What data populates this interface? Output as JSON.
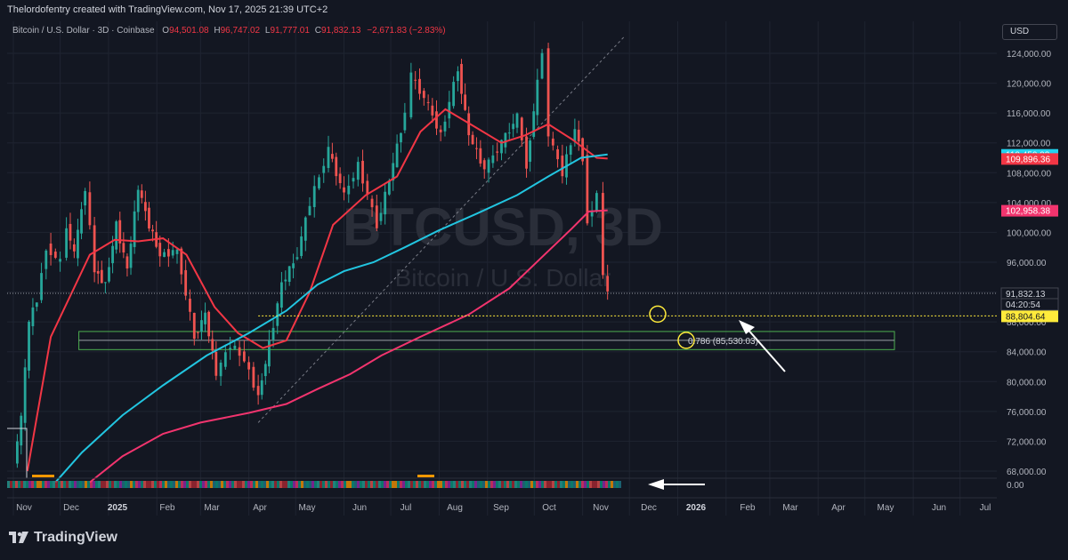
{
  "header": {
    "creator": "Thelordofentry created with TradingView.com, Nov 17, 2025 21:39 UTC+2"
  },
  "legend": {
    "symbol": "Bitcoin / U.S. Dollar · 3D · Coinbase",
    "open_label": "O",
    "open": "94,501.08",
    "high_label": "H",
    "high": "96,747.02",
    "low_label": "L",
    "low": "91,777.01",
    "close_label": "C",
    "close": "91,832.13",
    "change": "−2,671.83 (−2.83%)"
  },
  "currency_button": "USD",
  "watermark": {
    "ticker": "BTCUSD, 3D",
    "name": "Bitcoin / U.S. Dollar"
  },
  "price_tags": [
    {
      "label": "110,450.03",
      "color": "#22d3ee",
      "price": 110450.03
    },
    {
      "label": "109,896.36",
      "color": "#f23645",
      "price": 109896.36
    },
    {
      "label": "102,958.38",
      "color": "#f2346e",
      "price": 102958.38
    },
    {
      "label": "91,832.13",
      "color": "#131722",
      "price": 91832.13
    },
    {
      "label": "04:20:54",
      "color": "#131722",
      "price": 91832.13
    },
    {
      "label": "88,804.64",
      "color": "#ffeb3b",
      "price": 88804.64
    }
  ],
  "fib_label": "0.786 (85,530.03)",
  "indicator_zero": "0.00",
  "brand": "TradingView",
  "colors": {
    "up": "#26a69a",
    "down": "#ef5350",
    "ema_fast": "#f23645",
    "ma_cyan": "#22c5e0",
    "ma_pink": "#f2346e",
    "fib_box": "#4caf50",
    "target": "#ffeb3b"
  },
  "chart_data": {
    "type": "candlestick",
    "title": "Bitcoin / U.S. Dollar · 3D · Coinbase",
    "y_axis": {
      "range": [
        66000,
        126000
      ],
      "ticks": [
        124000,
        120000,
        116000,
        112000,
        108000,
        104000,
        100000,
        96000,
        92000,
        88000,
        84000,
        80000,
        76000,
        72000,
        68000
      ],
      "tick_labels": [
        "124,000.00",
        "120,000.00",
        "116,000.00",
        "112,000.00",
        "108,000.00",
        "104,000.00",
        "100,000.00",
        "96,000.00",
        "92,000.00",
        "88,000.00",
        "84,000.00",
        "80,000.00",
        "76,000.00",
        "72,000.00",
        "68,000.00"
      ]
    },
    "x_axis": {
      "labels": [
        "Nov",
        "Dec",
        "2025",
        "Feb",
        "Mar",
        "Apr",
        "May",
        "Jun",
        "Jul",
        "Aug",
        "Sep",
        "Oct",
        "Nov",
        "Dec",
        "2026",
        "Feb",
        "Mar",
        "Apr",
        "May",
        "Jun",
        "Jul"
      ],
      "bold": [
        "2025",
        "2026"
      ]
    },
    "close_series": [
      {
        "date": "2024-11-01",
        "close": 69000
      },
      {
        "date": "2024-11-06",
        "close": 75000
      },
      {
        "date": "2024-11-11",
        "close": 88000
      },
      {
        "date": "2024-11-16",
        "close": 91000
      },
      {
        "date": "2024-11-22",
        "close": 98000
      },
      {
        "date": "2024-12-01",
        "close": 96000
      },
      {
        "date": "2024-12-05",
        "close": 101000
      },
      {
        "date": "2024-12-10",
        "close": 97000
      },
      {
        "date": "2024-12-17",
        "close": 106000
      },
      {
        "date": "2024-12-23",
        "close": 95000
      },
      {
        "date": "2024-12-30",
        "close": 93000
      },
      {
        "date": "2025-01-06",
        "close": 101000
      },
      {
        "date": "2025-01-13",
        "close": 95000
      },
      {
        "date": "2025-01-20",
        "close": 106000
      },
      {
        "date": "2025-01-27",
        "close": 101000
      },
      {
        "date": "2025-02-03",
        "close": 97000
      },
      {
        "date": "2025-02-14",
        "close": 97500
      },
      {
        "date": "2025-02-25",
        "close": 86000
      },
      {
        "date": "2025-03-04",
        "close": 89000
      },
      {
        "date": "2025-03-11",
        "close": 81000
      },
      {
        "date": "2025-03-20",
        "close": 85000
      },
      {
        "date": "2025-03-29",
        "close": 83000
      },
      {
        "date": "2025-04-07",
        "close": 78000
      },
      {
        "date": "2025-04-14",
        "close": 85000
      },
      {
        "date": "2025-04-22",
        "close": 93000
      },
      {
        "date": "2025-05-02",
        "close": 97000
      },
      {
        "date": "2025-05-10",
        "close": 104000
      },
      {
        "date": "2025-05-22",
        "close": 111000
      },
      {
        "date": "2025-06-01",
        "close": 105000
      },
      {
        "date": "2025-06-10",
        "close": 109000
      },
      {
        "date": "2025-06-22",
        "close": 101000
      },
      {
        "date": "2025-06-30",
        "close": 107000
      },
      {
        "date": "2025-07-10",
        "close": 116000
      },
      {
        "date": "2025-07-14",
        "close": 121000
      },
      {
        "date": "2025-07-25",
        "close": 117000
      },
      {
        "date": "2025-08-02",
        "close": 113000
      },
      {
        "date": "2025-08-13",
        "close": 122000
      },
      {
        "date": "2025-08-20",
        "close": 113000
      },
      {
        "date": "2025-08-30",
        "close": 108500
      },
      {
        "date": "2025-09-10",
        "close": 112000
      },
      {
        "date": "2025-09-20",
        "close": 115500
      },
      {
        "date": "2025-09-26",
        "close": 109000
      },
      {
        "date": "2025-10-03",
        "close": 120000
      },
      {
        "date": "2025-10-06",
        "close": 124500
      },
      {
        "date": "2025-10-10",
        "close": 113000
      },
      {
        "date": "2025-10-19",
        "close": 108000
      },
      {
        "date": "2025-10-27",
        "close": 114000
      },
      {
        "date": "2025-11-01",
        "close": 110000
      },
      {
        "date": "2025-11-04",
        "close": 101500
      },
      {
        "date": "2025-11-10",
        "close": 105000
      },
      {
        "date": "2025-11-14",
        "close": 94500
      },
      {
        "date": "2025-11-17",
        "close": 91832.13
      }
    ],
    "moving_averages": [
      {
        "name": "",
        "color": "#f23645",
        "points": [
          {
            "date": "2024-11-10",
            "close": 68000
          },
          {
            "date": "2024-11-25",
            "close": 86000
          },
          {
            "date": "2024-12-20",
            "close": 97000
          },
          {
            "date": "2025-01-05",
            "close": 99000
          },
          {
            "date": "2025-01-20",
            "close": 98800
          },
          {
            "date": "2025-02-05",
            "close": 99200
          },
          {
            "date": "2025-02-20",
            "close": 97000
          },
          {
            "date": "2025-03-10",
            "close": 90000
          },
          {
            "date": "2025-03-25",
            "close": 86500
          },
          {
            "date": "2025-04-10",
            "close": 84500
          },
          {
            "date": "2025-04-25",
            "close": 85500
          },
          {
            "date": "2025-05-10",
            "close": 92000
          },
          {
            "date": "2025-05-25",
            "close": 101000
          },
          {
            "date": "2025-06-15",
            "close": 105000
          },
          {
            "date": "2025-07-05",
            "close": 107500
          },
          {
            "date": "2025-07-20",
            "close": 113500
          },
          {
            "date": "2025-08-05",
            "close": 116500
          },
          {
            "date": "2025-08-25",
            "close": 114000
          },
          {
            "date": "2025-09-10",
            "close": 112000
          },
          {
            "date": "2025-09-25",
            "close": 113000
          },
          {
            "date": "2025-10-10",
            "close": 114500
          },
          {
            "date": "2025-10-25",
            "close": 112500
          },
          {
            "date": "2025-11-10",
            "close": 110000
          },
          {
            "date": "2025-11-17",
            "close": 109896.36
          }
        ]
      },
      {
        "name": "",
        "color": "#22c5e0",
        "points": [
          {
            "date": "2024-11-28",
            "close": 66500
          },
          {
            "date": "2024-12-15",
            "close": 70500
          },
          {
            "date": "2025-01-10",
            "close": 75500
          },
          {
            "date": "2025-02-05",
            "close": 79500
          },
          {
            "date": "2025-03-05",
            "close": 83500
          },
          {
            "date": "2025-04-01",
            "close": 86500
          },
          {
            "date": "2025-04-25",
            "close": 89500
          },
          {
            "date": "2025-05-15",
            "close": 93000
          },
          {
            "date": "2025-06-01",
            "close": 94800
          },
          {
            "date": "2025-06-20",
            "close": 96000
          },
          {
            "date": "2025-07-10",
            "close": 98000
          },
          {
            "date": "2025-07-31",
            "close": 100200
          },
          {
            "date": "2025-08-25",
            "close": 102500
          },
          {
            "date": "2025-09-20",
            "close": 105000
          },
          {
            "date": "2025-10-10",
            "close": 107500
          },
          {
            "date": "2025-10-31",
            "close": 110000
          },
          {
            "date": "2025-11-17",
            "close": 110450.03
          }
        ]
      },
      {
        "name": "",
        "color": "#f2346e",
        "points": [
          {
            "date": "2024-12-20",
            "close": 66500
          },
          {
            "date": "2025-01-10",
            "close": 70000
          },
          {
            "date": "2025-02-05",
            "close": 73000
          },
          {
            "date": "2025-03-01",
            "close": 74500
          },
          {
            "date": "2025-04-01",
            "close": 75800
          },
          {
            "date": "2025-04-25",
            "close": 77000
          },
          {
            "date": "2025-05-15",
            "close": 79000
          },
          {
            "date": "2025-06-05",
            "close": 81000
          },
          {
            "date": "2025-06-25",
            "close": 83500
          },
          {
            "date": "2025-07-20",
            "close": 86000
          },
          {
            "date": "2025-08-20",
            "close": 89000
          },
          {
            "date": "2025-09-15",
            "close": 92500
          },
          {
            "date": "2025-10-05",
            "close": 96500
          },
          {
            "date": "2025-10-25",
            "close": 100500
          },
          {
            "date": "2025-11-05",
            "close": 102800
          },
          {
            "date": "2025-11-17",
            "close": 102958.38
          }
        ]
      }
    ],
    "levels": {
      "current_price": 91832.13,
      "target_price": 88804.64,
      "fib_0786": 85530.03,
      "fib_zone": [
        85000,
        86000
      ]
    }
  }
}
